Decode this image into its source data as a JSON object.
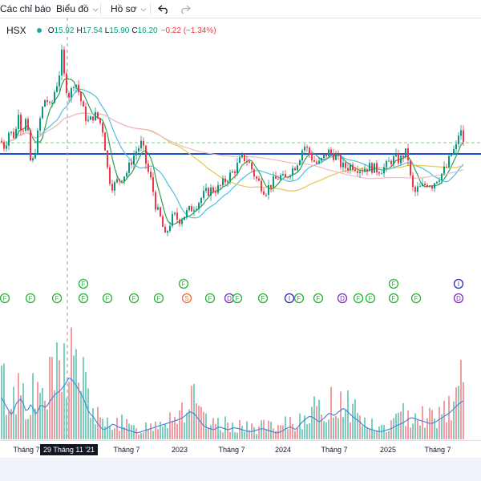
{
  "toolbar": {
    "indicators_label": "Các chỉ báo",
    "chart_type_label": "Biểu đồ",
    "profile_label": "Hồ sơ",
    "undo_icon": "undo-icon",
    "redo_icon": "redo-icon"
  },
  "legend": {
    "symbol": "HSX",
    "open_key": "O",
    "open": "15.92",
    "high_key": "H",
    "high": "17.54",
    "low_key": "L",
    "low": "15.90",
    "close_key": "C",
    "close": "16.20",
    "change": "−0.22 (−1.34%)"
  },
  "colors": {
    "up": "#089981",
    "down": "#f23645",
    "volume_up": "#7fcfc1",
    "volume_down": "#f59ba2",
    "ma_short": "#2e9e4f",
    "ma_mid": "#4ec0de",
    "ma_long": "#e6c84a",
    "ma_xlong": "#f0b8c8",
    "volume_ma": "#3d8de0",
    "horizontal_line": "#1f4fd8",
    "dashed_line": "#7ccb7c",
    "event_f": "#24b43a",
    "event_s": "#f06c3b",
    "event_i": "#2a2ab8",
    "event_d": "#7b2fbf"
  },
  "x_axis": {
    "ticks": [
      "Tháng 7",
      "2023",
      "Tháng 7",
      "2024",
      "Tháng 7",
      "2025",
      "Tháng 7"
    ],
    "crosshair_label": "29 Tháng 11 '21"
  },
  "event_markers": {
    "row1": [
      "F",
      "F",
      "F",
      "F",
      "F",
      "F",
      "F",
      "S",
      "F",
      "D",
      "F",
      "F",
      "I",
      "F",
      "F",
      "D",
      "F",
      "F",
      "F",
      "F",
      "D"
    ],
    "row2": [
      "F",
      "F",
      "F",
      "I"
    ]
  },
  "chart_data": {
    "type": "candlestick",
    "symbol": "HSX",
    "last_candle": {
      "open": 15.92,
      "high": 17.54,
      "low": 15.9,
      "close": 16.2,
      "change": -0.22,
      "change_pct": -1.34
    },
    "price_path": [
      [
        0,
        0.58
      ],
      [
        5,
        0.55
      ],
      [
        10,
        0.62
      ],
      [
        18,
        0.6
      ],
      [
        22,
        0.72
      ],
      [
        26,
        0.62
      ],
      [
        32,
        0.68
      ],
      [
        38,
        0.45
      ],
      [
        44,
        0.56
      ],
      [
        50,
        0.7
      ],
      [
        56,
        0.78
      ],
      [
        62,
        0.72
      ],
      [
        68,
        0.82
      ],
      [
        72,
        0.86
      ],
      [
        76,
        0.97
      ],
      [
        80,
        0.84
      ],
      [
        86,
        0.78
      ],
      [
        92,
        0.86
      ],
      [
        98,
        0.79
      ],
      [
        104,
        0.7
      ],
      [
        110,
        0.66
      ],
      [
        116,
        0.7
      ],
      [
        122,
        0.68
      ],
      [
        128,
        0.62
      ],
      [
        134,
        0.42
      ],
      [
        140,
        0.37
      ],
      [
        146,
        0.4
      ],
      [
        152,
        0.42
      ],
      [
        158,
        0.44
      ],
      [
        164,
        0.5
      ],
      [
        170,
        0.54
      ],
      [
        176,
        0.57
      ],
      [
        182,
        0.46
      ],
      [
        188,
        0.39
      ],
      [
        194,
        0.27
      ],
      [
        200,
        0.22
      ],
      [
        205,
        0.14
      ],
      [
        210,
        0.2
      ],
      [
        216,
        0.24
      ],
      [
        222,
        0.22
      ],
      [
        228,
        0.24
      ],
      [
        234,
        0.26
      ],
      [
        240,
        0.28
      ],
      [
        246,
        0.3
      ],
      [
        252,
        0.33
      ],
      [
        258,
        0.35
      ],
      [
        264,
        0.36
      ],
      [
        270,
        0.36
      ],
      [
        276,
        0.38
      ],
      [
        282,
        0.41
      ],
      [
        288,
        0.43
      ],
      [
        294,
        0.46
      ],
      [
        300,
        0.5
      ],
      [
        306,
        0.5
      ],
      [
        312,
        0.46
      ],
      [
        318,
        0.41
      ],
      [
        324,
        0.38
      ],
      [
        330,
        0.35
      ],
      [
        336,
        0.38
      ],
      [
        342,
        0.4
      ],
      [
        348,
        0.42
      ],
      [
        354,
        0.4
      ],
      [
        360,
        0.44
      ],
      [
        366,
        0.46
      ],
      [
        372,
        0.5
      ],
      [
        378,
        0.56
      ],
      [
        384,
        0.53
      ],
      [
        390,
        0.49
      ],
      [
        396,
        0.47
      ],
      [
        402,
        0.5
      ],
      [
        408,
        0.53
      ],
      [
        414,
        0.52
      ],
      [
        420,
        0.5
      ],
      [
        426,
        0.46
      ],
      [
        432,
        0.46
      ],
      [
        438,
        0.47
      ],
      [
        444,
        0.46
      ],
      [
        450,
        0.45
      ],
      [
        456,
        0.46
      ],
      [
        462,
        0.46
      ],
      [
        468,
        0.45
      ],
      [
        474,
        0.45
      ],
      [
        480,
        0.46
      ],
      [
        486,
        0.49
      ],
      [
        492,
        0.5
      ],
      [
        498,
        0.49
      ],
      [
        504,
        0.53
      ],
      [
        508,
        0.5
      ],
      [
        512,
        0.38
      ],
      [
        516,
        0.34
      ],
      [
        520,
        0.36
      ],
      [
        526,
        0.37
      ],
      [
        532,
        0.39
      ],
      [
        538,
        0.38
      ],
      [
        544,
        0.41
      ],
      [
        550,
        0.43
      ],
      [
        556,
        0.46
      ],
      [
        562,
        0.52
      ],
      [
        568,
        0.55
      ],
      [
        572,
        0.63
      ],
      [
        576,
        0.6
      ],
      [
        579,
        0.54
      ]
    ],
    "volume_path": [
      [
        0,
        0.55
      ],
      [
        8,
        0.4
      ],
      [
        14,
        0.3
      ],
      [
        20,
        0.48
      ],
      [
        26,
        0.52
      ],
      [
        32,
        0.34
      ],
      [
        38,
        0.46
      ],
      [
        44,
        0.3
      ],
      [
        50,
        0.45
      ],
      [
        56,
        0.4
      ],
      [
        62,
        0.5
      ],
      [
        68,
        0.58
      ],
      [
        74,
        0.62
      ],
      [
        80,
        0.7
      ],
      [
        86,
        0.8
      ],
      [
        92,
        0.72
      ],
      [
        98,
        0.62
      ],
      [
        104,
        0.5
      ],
      [
        110,
        0.34
      ],
      [
        116,
        0.28
      ],
      [
        122,
        0.18
      ],
      [
        128,
        0.12
      ],
      [
        134,
        0.15
      ],
      [
        140,
        0.2
      ],
      [
        146,
        0.16
      ],
      [
        152,
        0.14
      ],
      [
        158,
        0.12
      ],
      [
        164,
        0.1
      ],
      [
        170,
        0.08
      ],
      [
        176,
        0.1
      ],
      [
        182,
        0.12
      ],
      [
        188,
        0.14
      ],
      [
        194,
        0.16
      ],
      [
        200,
        0.18
      ],
      [
        206,
        0.2
      ],
      [
        212,
        0.22
      ],
      [
        218,
        0.24
      ],
      [
        224,
        0.26
      ],
      [
        230,
        0.3
      ],
      [
        236,
        0.36
      ],
      [
        242,
        0.32
      ],
      [
        248,
        0.24
      ],
      [
        254,
        0.16
      ],
      [
        260,
        0.14
      ],
      [
        266,
        0.12
      ],
      [
        272,
        0.16
      ],
      [
        278,
        0.14
      ],
      [
        284,
        0.12
      ],
      [
        290,
        0.15
      ],
      [
        296,
        0.14
      ],
      [
        302,
        0.12
      ],
      [
        308,
        0.1
      ],
      [
        314,
        0.1
      ],
      [
        320,
        0.12
      ],
      [
        326,
        0.14
      ],
      [
        332,
        0.12
      ],
      [
        338,
        0.1
      ],
      [
        344,
        0.08
      ],
      [
        350,
        0.1
      ],
      [
        356,
        0.14
      ],
      [
        362,
        0.16
      ],
      [
        368,
        0.12
      ],
      [
        374,
        0.2
      ],
      [
        380,
        0.26
      ],
      [
        386,
        0.3
      ],
      [
        392,
        0.26
      ],
      [
        398,
        0.22
      ],
      [
        404,
        0.28
      ],
      [
        410,
        0.34
      ],
      [
        416,
        0.3
      ],
      [
        422,
        0.36
      ],
      [
        428,
        0.4
      ],
      [
        434,
        0.34
      ],
      [
        440,
        0.28
      ],
      [
        446,
        0.24
      ],
      [
        452,
        0.18
      ],
      [
        458,
        0.14
      ],
      [
        464,
        0.12
      ],
      [
        470,
        0.1
      ],
      [
        476,
        0.1
      ],
      [
        482,
        0.12
      ],
      [
        488,
        0.14
      ],
      [
        494,
        0.18
      ],
      [
        500,
        0.2
      ],
      [
        506,
        0.24
      ],
      [
        512,
        0.28
      ],
      [
        518,
        0.26
      ],
      [
        524,
        0.24
      ],
      [
        530,
        0.22
      ],
      [
        536,
        0.2
      ],
      [
        542,
        0.22
      ],
      [
        548,
        0.26
      ],
      [
        554,
        0.3
      ],
      [
        560,
        0.34
      ],
      [
        566,
        0.4
      ],
      [
        572,
        0.46
      ],
      [
        578,
        0.5
      ]
    ]
  }
}
